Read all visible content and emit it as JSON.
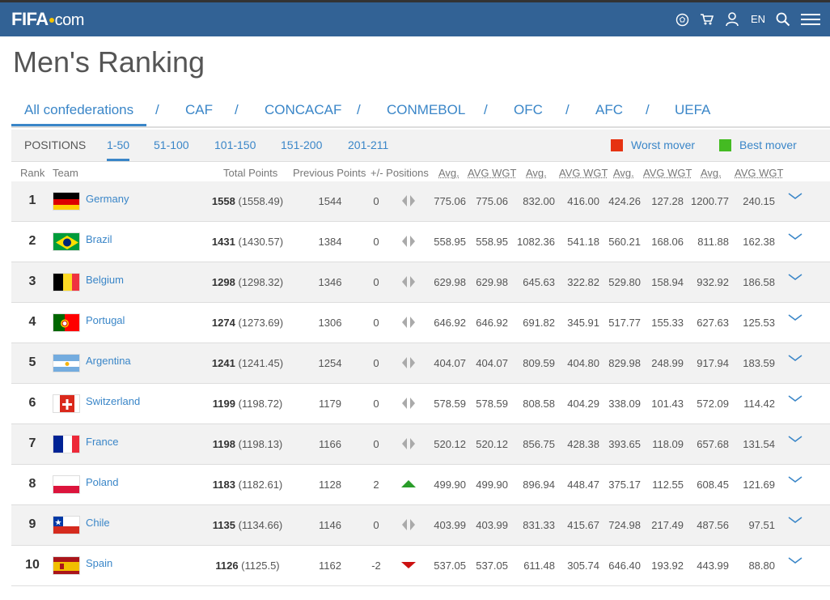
{
  "header": {
    "logo_main": "FIFA",
    "logo_suffix": "com",
    "lang": "EN",
    "icons": [
      "ball-icon",
      "cart-icon",
      "user-icon",
      "search-icon",
      "menu-icon"
    ]
  },
  "page_title": "Men's Ranking",
  "confederations": {
    "tabs": [
      "All confederations",
      "CAF",
      "CONCACAF",
      "CONMEBOL",
      "OFC",
      "AFC",
      "UEFA"
    ],
    "active": "All confederations",
    "separator": "/"
  },
  "positions": {
    "label": "POSITIONS",
    "tabs": [
      "1-50",
      "51-100",
      "101-150",
      "151-200",
      "201-211"
    ],
    "active": "1-50",
    "legend": [
      {
        "label": "Worst mover",
        "color": "#e63312"
      },
      {
        "label": "Best mover",
        "color": "#44bb22"
      }
    ]
  },
  "columns": {
    "rank": "Rank",
    "team": "Team",
    "total": "Total Points",
    "prev": "Previous Points",
    "chg": "+/- Positions",
    "avg1": "Avg.",
    "wgt1": "AVG WGT",
    "avg2": "Avg.",
    "wgt2": "AVG WGT",
    "avg3": "Avg.",
    "wgt3": "AVG WGT",
    "avg4": "Avg.",
    "wgt4": "AVG WGT"
  },
  "rows": [
    {
      "rank": "1",
      "team": "Germany",
      "flag": "germany",
      "pts": "1558",
      "pts_exact": "(1558.49)",
      "prev": "1544",
      "chg": "0",
      "move": "same",
      "vals": [
        "775.06",
        "775.06",
        "832.00",
        "416.00",
        "424.26",
        "127.28",
        "1200.77",
        "240.15"
      ]
    },
    {
      "rank": "2",
      "team": "Brazil",
      "flag": "brazil",
      "pts": "1431",
      "pts_exact": "(1430.57)",
      "prev": "1384",
      "chg": "0",
      "move": "same",
      "vals": [
        "558.95",
        "558.95",
        "1082.36",
        "541.18",
        "560.21",
        "168.06",
        "811.88",
        "162.38"
      ]
    },
    {
      "rank": "3",
      "team": "Belgium",
      "flag": "belgium",
      "pts": "1298",
      "pts_exact": "(1298.32)",
      "prev": "1346",
      "chg": "0",
      "move": "same",
      "vals": [
        "629.98",
        "629.98",
        "645.63",
        "322.82",
        "529.80",
        "158.94",
        "932.92",
        "186.58"
      ]
    },
    {
      "rank": "4",
      "team": "Portugal",
      "flag": "portugal",
      "pts": "1274",
      "pts_exact": "(1273.69)",
      "prev": "1306",
      "chg": "0",
      "move": "same",
      "vals": [
        "646.92",
        "646.92",
        "691.82",
        "345.91",
        "517.77",
        "155.33",
        "627.63",
        "125.53"
      ]
    },
    {
      "rank": "5",
      "team": "Argentina",
      "flag": "argentina",
      "pts": "1241",
      "pts_exact": "(1241.45)",
      "prev": "1254",
      "chg": "0",
      "move": "same",
      "vals": [
        "404.07",
        "404.07",
        "809.59",
        "404.80",
        "829.98",
        "248.99",
        "917.94",
        "183.59"
      ]
    },
    {
      "rank": "6",
      "team": "Switzerland",
      "flag": "switzerland",
      "pts": "1199",
      "pts_exact": "(1198.72)",
      "prev": "1179",
      "chg": "0",
      "move": "same",
      "vals": [
        "578.59",
        "578.59",
        "808.58",
        "404.29",
        "338.09",
        "101.43",
        "572.09",
        "114.42"
      ]
    },
    {
      "rank": "7",
      "team": "France",
      "flag": "france",
      "pts": "1198",
      "pts_exact": "(1198.13)",
      "prev": "1166",
      "chg": "0",
      "move": "same",
      "vals": [
        "520.12",
        "520.12",
        "856.75",
        "428.38",
        "393.65",
        "118.09",
        "657.68",
        "131.54"
      ]
    },
    {
      "rank": "8",
      "team": "Poland",
      "flag": "poland",
      "pts": "1183",
      "pts_exact": "(1182.61)",
      "prev": "1128",
      "chg": "2",
      "move": "up",
      "vals": [
        "499.90",
        "499.90",
        "896.94",
        "448.47",
        "375.17",
        "112.55",
        "608.45",
        "121.69"
      ]
    },
    {
      "rank": "9",
      "team": "Chile",
      "flag": "chile",
      "pts": "1135",
      "pts_exact": "(1134.66)",
      "prev": "1146",
      "chg": "0",
      "move": "same",
      "vals": [
        "403.99",
        "403.99",
        "831.33",
        "415.67",
        "724.98",
        "217.49",
        "487.56",
        "97.51"
      ]
    },
    {
      "rank": "10",
      "team": "Spain",
      "flag": "spain",
      "pts": "1126",
      "pts_exact": "(1125.5)",
      "prev": "1162",
      "chg": "-2",
      "move": "down",
      "vals": [
        "537.05",
        "537.05",
        "611.48",
        "305.74",
        "646.40",
        "193.92",
        "443.99",
        "88.80"
      ]
    }
  ]
}
